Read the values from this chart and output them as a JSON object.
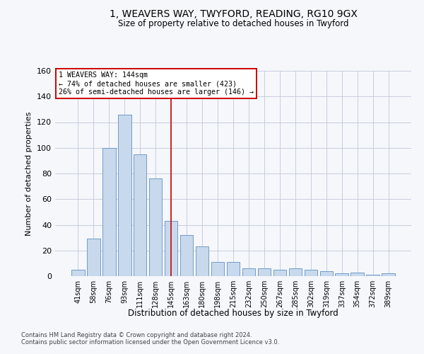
{
  "title": "1, WEAVERS WAY, TWYFORD, READING, RG10 9GX",
  "subtitle": "Size of property relative to detached houses in Twyford",
  "xlabel": "Distribution of detached houses by size in Twyford",
  "ylabel": "Number of detached properties",
  "categories": [
    "41sqm",
    "58sqm",
    "76sqm",
    "93sqm",
    "111sqm",
    "128sqm",
    "145sqm",
    "163sqm",
    "180sqm",
    "198sqm",
    "215sqm",
    "232sqm",
    "250sqm",
    "267sqm",
    "285sqm",
    "302sqm",
    "319sqm",
    "337sqm",
    "354sqm",
    "372sqm",
    "389sqm"
  ],
  "values": [
    5,
    29,
    100,
    126,
    95,
    76,
    43,
    32,
    23,
    11,
    11,
    6,
    6,
    5,
    6,
    5,
    4,
    2,
    3,
    1,
    2
  ],
  "bar_color": "#c8d9ed",
  "bar_edge_color": "#6090c0",
  "grid_color": "#c0c8d8",
  "ann_line1": "1 WEAVERS WAY: 144sqm",
  "ann_line2": "← 74% of detached houses are smaller (423)",
  "ann_line3": "26% of semi-detached houses are larger (146) →",
  "vline_color": "#cc0000",
  "box_edge_color": "#cc0000",
  "box_face_color": "#ffffff",
  "ylim": [
    0,
    160
  ],
  "yticks": [
    0,
    20,
    40,
    60,
    80,
    100,
    120,
    140,
    160
  ],
  "footnote1": "Contains HM Land Registry data © Crown copyright and database right 2024.",
  "footnote2": "Contains public sector information licensed under the Open Government Licence v3.0.",
  "bg_color": "#f5f7fb"
}
